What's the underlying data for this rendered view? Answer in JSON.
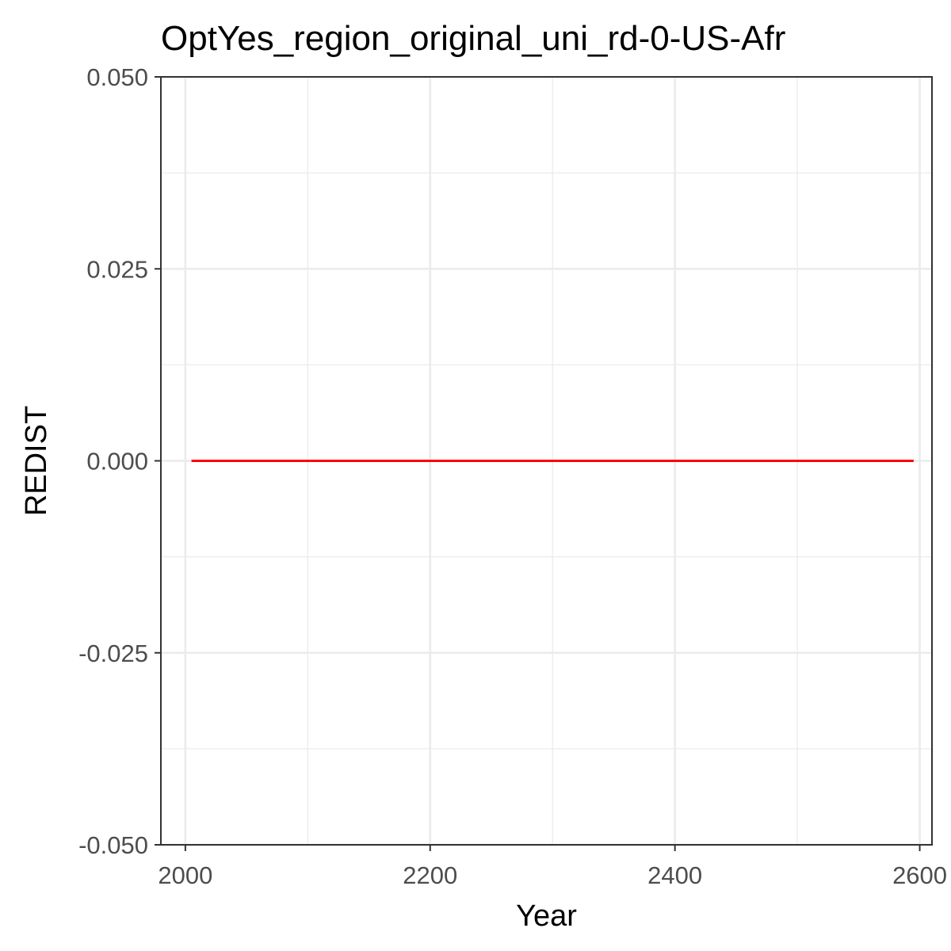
{
  "chart_data": {
    "type": "line",
    "title": "OptYes_region_original_uni_rd-0-US-Afr",
    "xlabel": "Year",
    "ylabel": "REDIST",
    "xlim": [
      1980,
      2610
    ],
    "ylim": [
      -0.05,
      0.05
    ],
    "x_ticks": [
      2000,
      2200,
      2400,
      2600
    ],
    "x_tick_labels": [
      "2000",
      "2200",
      "2400",
      "2600"
    ],
    "x_minor_ticks": [
      2100,
      2300,
      2500
    ],
    "y_ticks": [
      -0.05,
      -0.025,
      0,
      0.025,
      0.05
    ],
    "y_tick_labels": [
      "-0.050",
      "-0.025",
      "0.000",
      "0.025",
      "0.050"
    ],
    "y_minor_ticks": [
      -0.0375,
      -0.0125,
      0.0125,
      0.0375
    ],
    "grid": true,
    "legend": "none",
    "series": [
      {
        "color": "#ff0000",
        "x": [
          2005,
          2595
        ],
        "y": [
          0,
          0
        ]
      }
    ]
  }
}
